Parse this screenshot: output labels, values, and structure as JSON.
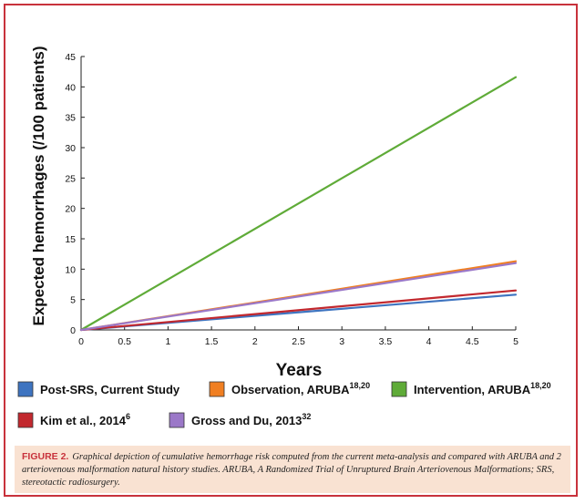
{
  "chart_data": {
    "type": "line",
    "title": "",
    "xlabel": "Years",
    "ylabel": "Expected hemorrhages (/100 patients)",
    "xlim": [
      0,
      5
    ],
    "ylim": [
      0,
      45
    ],
    "x_ticks": [
      "0",
      "0.5",
      "1",
      "1.5",
      "2",
      "2.5",
      "3",
      "3.5",
      "4",
      "4.5",
      "5"
    ],
    "y_ticks": [
      "0",
      "5",
      "10",
      "15",
      "20",
      "25",
      "30",
      "35",
      "40",
      "45"
    ],
    "grid": false,
    "legend_position": "bottom",
    "series": [
      {
        "name": "Post-SRS, Current Study",
        "sup": "",
        "color": "#3e74c0",
        "x": [
          0,
          5
        ],
        "y": [
          0,
          5.8
        ]
      },
      {
        "name": "Observation, ARUBA",
        "sup": "18,20",
        "color": "#f07f22",
        "x": [
          0,
          5
        ],
        "y": [
          0,
          11.3
        ]
      },
      {
        "name": "Intervention, ARUBA",
        "sup": "18,20",
        "color": "#5fab38",
        "x": [
          0,
          5
        ],
        "y": [
          0,
          41.6
        ]
      },
      {
        "name": "Kim et al., 2014",
        "sup": "6",
        "color": "#c2282e",
        "x": [
          0,
          5
        ],
        "y": [
          0,
          6.5
        ]
      },
      {
        "name": "Gross and Du, 2013",
        "sup": "32",
        "color": "#9b78c8",
        "x": [
          0,
          5
        ],
        "y": [
          0,
          11.0
        ]
      }
    ]
  },
  "caption": {
    "label": "FIGURE 2.",
    "text": "Graphical depiction of cumulative hemorrhage risk computed from the current meta-analysis and compared with ARUBA and 2 arteriovenous malformation natural history studies. ARUBA, A Randomized Trial of Unruptured Brain Arteriovenous Malformations; SRS, stereotactic radiosurgery."
  }
}
